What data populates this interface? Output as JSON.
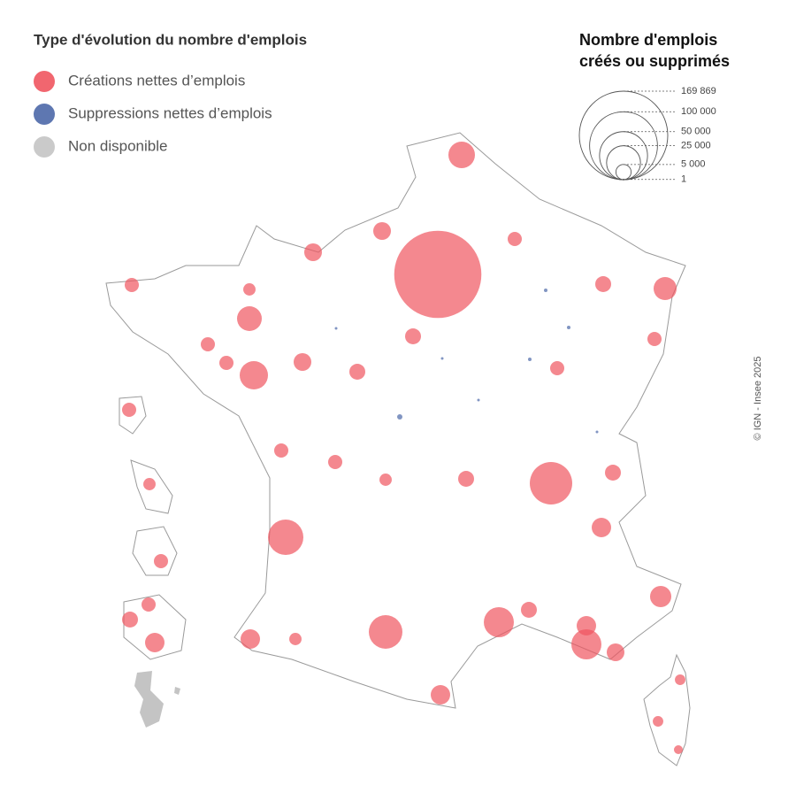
{
  "title": "Type d'évolution du nombre d'emplois",
  "legend": {
    "items": [
      {
        "label": "Créations nettes d’emplois",
        "color": "#f0555f"
      },
      {
        "label": "Suppressions nettes d’emplois",
        "color": "#4c68a8"
      },
      {
        "label": "Non disponible",
        "color": "#c4c4c4"
      }
    ]
  },
  "size_legend": {
    "title_lines": [
      "Nombre d'emplois",
      "créés ou supprimés"
    ],
    "ticks": [
      {
        "value": 169869,
        "label": "169 869"
      },
      {
        "value": 100000,
        "label": "100 000"
      },
      {
        "value": 50000,
        "label": "50 000"
      },
      {
        "value": 25000,
        "label": "25 000"
      },
      {
        "value": 5000,
        "label": "5 000"
      },
      1
    ]
  },
  "map": {
    "creations": {
      "color": "#f0555f",
      "values": [
        165000,
        15300,
        39100,
        24500,
        27200,
        17400,
        13300,
        19600,
        19600,
        9800,
        11500,
        6800,
        8200,
        8200,
        6800,
        5500,
        6800,
        5500,
        8200,
        8200,
        3300,
        5500,
        6800,
        4350,
        5500,
        5500,
        4350,
        4350,
        5500,
        3300,
        4350,
        4350,
        4350,
        4350,
        4350,
        3300,
        4350,
        4350,
        8200,
        5500,
        4350,
        3300,
        2400,
        2400,
        1700
      ]
    },
    "suppressions": {
      "color": "#4c68a8",
      "values": [
        611,
        272,
        272,
        272,
        153,
        153,
        153,
        153
      ]
    }
  },
  "credit": "© IGN - Insee 2025"
}
